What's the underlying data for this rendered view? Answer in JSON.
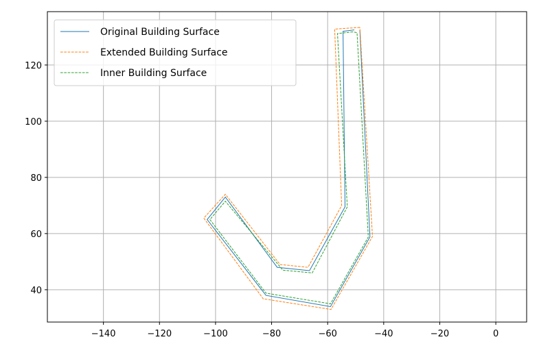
{
  "chart_data": {
    "type": "line",
    "title": "",
    "xlabel": "",
    "ylabel": "",
    "xlim": [
      -160,
      11
    ],
    "ylim": [
      28.5,
      139
    ],
    "x_ticks": [
      -140,
      -120,
      -100,
      -80,
      -60,
      -40,
      -20,
      0
    ],
    "x_tick_labels": [
      "−140",
      "−120",
      "−100",
      "−80",
      "−60",
      "−40",
      "−20",
      "0"
    ],
    "y_ticks": [
      40,
      60,
      80,
      100,
      120
    ],
    "y_tick_labels": [
      "40",
      "60",
      "80",
      "100",
      "120"
    ],
    "grid": true,
    "legend_position": "upper-left",
    "series": [
      {
        "name": "Original Building Surface",
        "color": "#1f77b4",
        "dash": "solid",
        "points": [
          [
            -50.5,
            132.5
          ],
          [
            -54.5,
            132.0
          ],
          [
            -53.8,
            69.5
          ],
          [
            -66.5,
            46.8
          ],
          [
            -78.0,
            48.0
          ],
          [
            -96.5,
            73.0
          ],
          [
            -103.0,
            65.0
          ],
          [
            -82.0,
            38.0
          ],
          [
            -59.0,
            34.0
          ],
          [
            -44.9,
            58.8
          ],
          [
            -48.5,
            132.4
          ]
        ]
      },
      {
        "name": "Extended Building Surface",
        "color": "#ff7f0e",
        "dash": "dashed",
        "points": [
          [
            -48.5,
            133.4
          ],
          [
            -57.5,
            132.8
          ],
          [
            -55.0,
            70.0
          ],
          [
            -67.0,
            48.0
          ],
          [
            -77.0,
            49.0
          ],
          [
            -96.5,
            74.0
          ],
          [
            -104.2,
            65.5
          ],
          [
            -83.0,
            36.8
          ],
          [
            -58.8,
            33.0
          ],
          [
            -44.0,
            59.0
          ],
          [
            -48.5,
            133.4
          ]
        ]
      },
      {
        "name": "Inner Building Surface",
        "color": "#2ca02c",
        "dash": "dashed",
        "points": [
          [
            -51.0,
            131.8
          ],
          [
            -56.5,
            131.2
          ],
          [
            -53.0,
            69.5
          ],
          [
            -65.5,
            46.0
          ],
          [
            -76.0,
            47.0
          ],
          [
            -96.5,
            71.5
          ],
          [
            -102.0,
            65.0
          ],
          [
            -82.0,
            38.8
          ],
          [
            -59.0,
            35.0
          ],
          [
            -45.5,
            58.8
          ],
          [
            -49.5,
            131.5
          ],
          [
            -51.0,
            131.8
          ]
        ]
      }
    ]
  }
}
